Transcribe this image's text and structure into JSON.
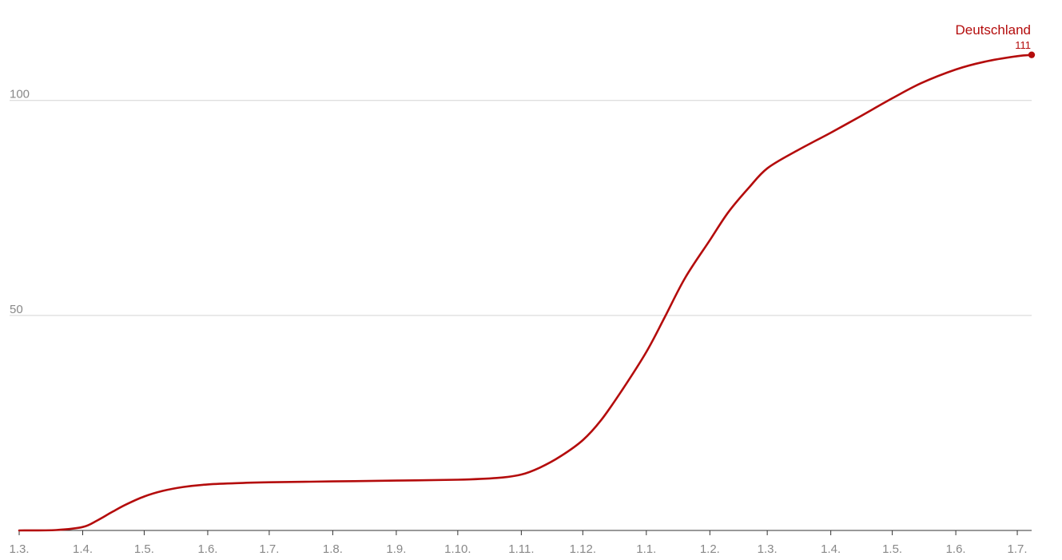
{
  "chart_data": {
    "type": "line",
    "title": "",
    "xlabel": "",
    "ylabel": "",
    "ylim": [
      0,
      115
    ],
    "grid": true,
    "legend": "direct label at line end (top-right)",
    "y_ticks": [
      50,
      100
    ],
    "x_ticks": [
      "1.3.",
      "1.4.",
      "1.5.",
      "1.6.",
      "1.7.",
      "1.8.",
      "1.9.",
      "1.10.",
      "1.11.",
      "1.12.",
      "1.1.",
      "1.2.",
      "1.3.",
      "1.4.",
      "1.5.",
      "1.6.",
      "1.7."
    ],
    "x_range": [
      "2020-03-01",
      "2021-07-08"
    ],
    "series": [
      {
        "name": "Deutschland",
        "color": "#b40c0c",
        "end_value_label": "111",
        "points": [
          {
            "x": "2020-03-01",
            "y": 0.0
          },
          {
            "x": "2020-03-19",
            "y": 0.1
          },
          {
            "x": "2020-04-01",
            "y": 0.8
          },
          {
            "x": "2020-04-08",
            "y": 2.3
          },
          {
            "x": "2020-04-15",
            "y": 4.2
          },
          {
            "x": "2020-04-22",
            "y": 6.0
          },
          {
            "x": "2020-05-01",
            "y": 7.9
          },
          {
            "x": "2020-05-10",
            "y": 9.2
          },
          {
            "x": "2020-05-20",
            "y": 10.1
          },
          {
            "x": "2020-06-01",
            "y": 10.7
          },
          {
            "x": "2020-06-15",
            "y": 11.0
          },
          {
            "x": "2020-07-01",
            "y": 11.2
          },
          {
            "x": "2020-08-01",
            "y": 11.4
          },
          {
            "x": "2020-09-01",
            "y": 11.6
          },
          {
            "x": "2020-10-01",
            "y": 11.8
          },
          {
            "x": "2020-10-20",
            "y": 12.2
          },
          {
            "x": "2020-11-01",
            "y": 13.0
          },
          {
            "x": "2020-11-10",
            "y": 14.6
          },
          {
            "x": "2020-11-20",
            "y": 17.2
          },
          {
            "x": "2020-12-01",
            "y": 21.0
          },
          {
            "x": "2020-12-10",
            "y": 25.7
          },
          {
            "x": "2020-12-20",
            "y": 32.5
          },
          {
            "x": "2021-01-01",
            "y": 41.5
          },
          {
            "x": "2021-01-10",
            "y": 49.6
          },
          {
            "x": "2021-01-20",
            "y": 58.8
          },
          {
            "x": "2021-02-01",
            "y": 67.5
          },
          {
            "x": "2021-02-10",
            "y": 74.0
          },
          {
            "x": "2021-02-20",
            "y": 79.7
          },
          {
            "x": "2021-03-01",
            "y": 84.2
          },
          {
            "x": "2021-03-15",
            "y": 88.2
          },
          {
            "x": "2021-04-01",
            "y": 92.5
          },
          {
            "x": "2021-04-15",
            "y": 96.2
          },
          {
            "x": "2021-05-01",
            "y": 100.5
          },
          {
            "x": "2021-05-15",
            "y": 104.0
          },
          {
            "x": "2021-06-01",
            "y": 107.2
          },
          {
            "x": "2021-06-15",
            "y": 109.0
          },
          {
            "x": "2021-07-01",
            "y": 110.3
          },
          {
            "x": "2021-07-08",
            "y": 110.6
          }
        ]
      }
    ]
  }
}
